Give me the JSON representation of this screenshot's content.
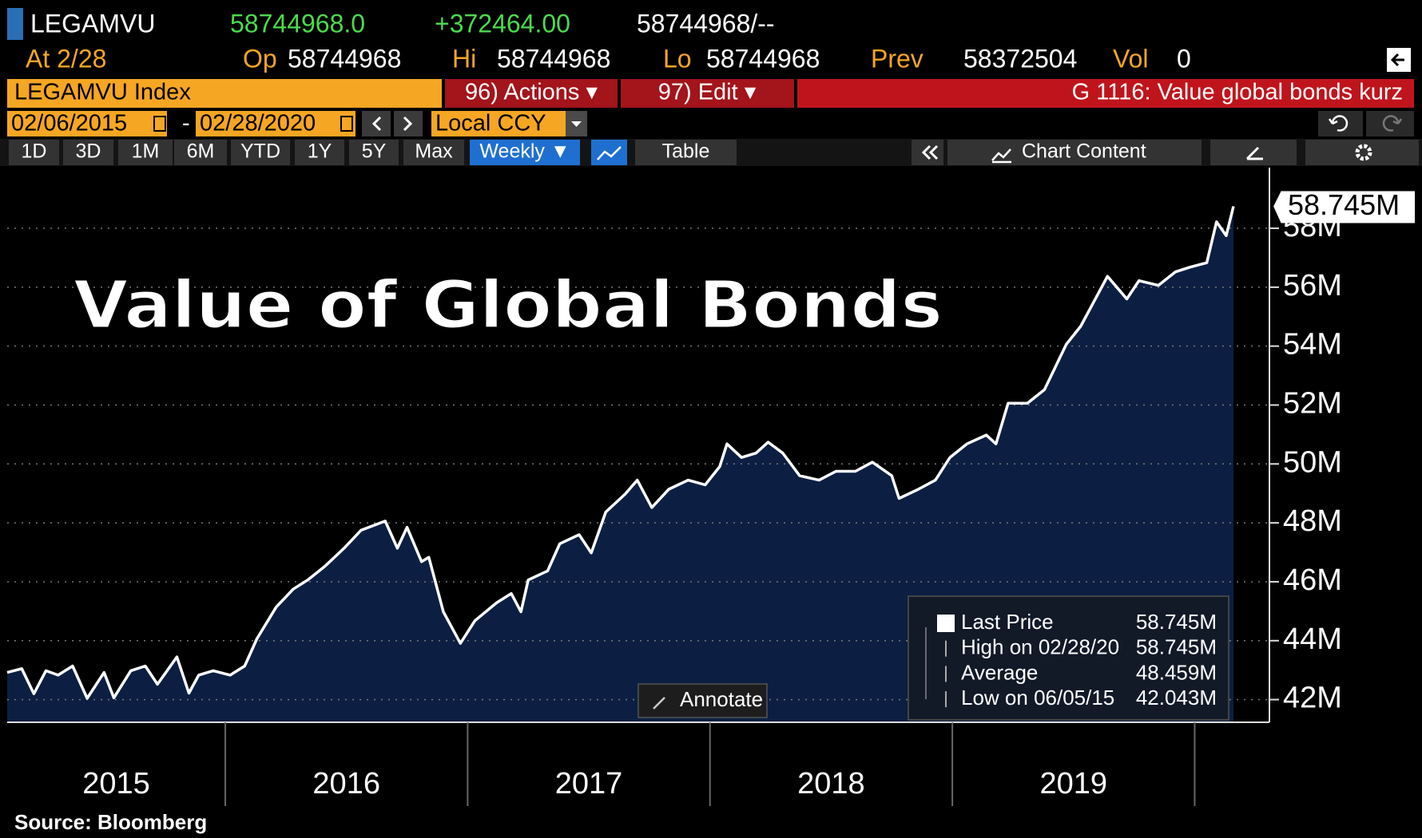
{
  "header": {
    "ticker": "LEGAMVU",
    "last": "58744968.0",
    "change": "+372464.00",
    "bid_ask": "58744968/--",
    "as_of": "At 2/28",
    "open_label": "Op",
    "open": "58744968",
    "high_label": "Hi",
    "high": "58744968",
    "low_label": "Lo",
    "low": "58744968",
    "prev_label": "Prev",
    "prev": "58372504",
    "vol_label": "Vol",
    "vol": "0"
  },
  "toolbar": {
    "security": "LEGAMVU Index",
    "actions": "96) Actions ▾",
    "edit": "97) Edit ▾",
    "function": "G 1116: Value global bonds kurz",
    "start_date": "02/06/2015",
    "date_sep": "-",
    "end_date": "02/28/2020",
    "currency": "Local CCY"
  },
  "tabs": [
    "1D",
    "3D",
    "1M",
    "6M",
    "YTD",
    "1Y",
    "5Y",
    "Max",
    "Weekly ▼",
    "Table",
    "Chart Content"
  ],
  "chart_data": {
    "type": "line",
    "title": "Value of Global Bonds",
    "color": "#ffffff",
    "fill": "#0c1f42",
    "x": [
      2015.1,
      2015.16,
      2015.21,
      2015.26,
      2015.31,
      2015.37,
      2015.43,
      2015.5,
      2015.54,
      2015.61,
      2015.67,
      2015.72,
      2015.8,
      2015.85,
      2015.89,
      2015.95,
      2016.02,
      2016.08,
      2016.13,
      2016.21,
      2016.28,
      2016.34,
      2016.41,
      2016.49,
      2016.56,
      2016.66,
      2016.71,
      2016.75,
      2016.81,
      2016.84,
      2016.9,
      2016.97,
      2017.03,
      2017.12,
      2017.18,
      2017.22,
      2017.25,
      2017.33,
      2017.38,
      2017.46,
      2017.51,
      2017.57,
      2017.65,
      2017.7,
      2017.76,
      2017.83,
      2017.91,
      2017.98,
      2018.04,
      2018.07,
      2018.13,
      2018.19,
      2018.24,
      2018.3,
      2018.37,
      2018.45,
      2018.52,
      2018.6,
      2018.67,
      2018.75,
      2018.78,
      2018.86,
      2018.93,
      2018.99,
      2019.06,
      2019.14,
      2019.18,
      2019.23,
      2019.31,
      2019.38,
      2019.47,
      2019.53,
      2019.59,
      2019.64,
      2019.72,
      2019.77,
      2019.85,
      2019.92,
      2019.98,
      2020.05,
      2020.09,
      2020.13,
      2020.16
    ],
    "values": [
      42.92,
      43.05,
      42.2,
      42.98,
      42.83,
      43.14,
      42.043,
      42.92,
      42.06,
      42.98,
      43.14,
      42.52,
      43.45,
      42.22,
      42.83,
      42.98,
      42.83,
      43.14,
      44.06,
      45.14,
      45.75,
      46.06,
      46.52,
      47.14,
      47.75,
      48.06,
      47.14,
      47.85,
      46.68,
      46.83,
      44.98,
      43.91,
      44.68,
      45.29,
      45.6,
      44.98,
      46.06,
      46.37,
      47.29,
      47.6,
      46.98,
      48.37,
      48.98,
      49.45,
      48.52,
      49.14,
      49.45,
      49.29,
      49.91,
      50.68,
      50.22,
      50.37,
      50.74,
      50.37,
      49.6,
      49.45,
      49.75,
      49.75,
      50.06,
      49.6,
      48.83,
      49.14,
      49.45,
      50.22,
      50.68,
      50.98,
      50.68,
      52.06,
      52.06,
      52.52,
      54.06,
      54.68,
      55.6,
      56.37,
      55.6,
      56.22,
      56.06,
      56.52,
      56.68,
      56.83,
      58.22,
      57.75,
      58.745
    ],
    "last_label": "58.745M",
    "xlim": [
      2015.1,
      2020.16
    ],
    "xticks": [
      2016,
      2017,
      2018,
      2019,
      2020
    ],
    "years": [
      {
        "value": 2015,
        "label": "2015"
      },
      {
        "value": 2016,
        "label": "2016"
      },
      {
        "value": 2017,
        "label": "2017"
      },
      {
        "value": 2018,
        "label": "2018"
      },
      {
        "value": 2019,
        "label": "2019"
      }
    ],
    "ylim": [
      41.23,
      60.06
    ],
    "yticks": [
      {
        "value": 42,
        "label": "42M"
      },
      {
        "value": 44,
        "label": "44M"
      },
      {
        "value": 46,
        "label": "46M"
      },
      {
        "value": 48,
        "label": "48M"
      },
      {
        "value": 50,
        "label": "50M"
      },
      {
        "value": 52,
        "label": "52M"
      },
      {
        "value": 54,
        "label": "54M"
      },
      {
        "value": 56,
        "label": "56M"
      },
      {
        "value": 58,
        "label": "58M"
      }
    ],
    "grid": true,
    "legend": {
      "rows": [
        {
          "label": "Last Price",
          "value": "58.745M"
        },
        {
          "label": "High on 02/28/20",
          "value": "58.745M"
        },
        {
          "label": "Average",
          "value": "48.459M"
        },
        {
          "label": "Low on 06/05/15",
          "value": "42.043M"
        }
      ]
    }
  },
  "annotate": "Annotate",
  "source": "Source: Bloomberg"
}
